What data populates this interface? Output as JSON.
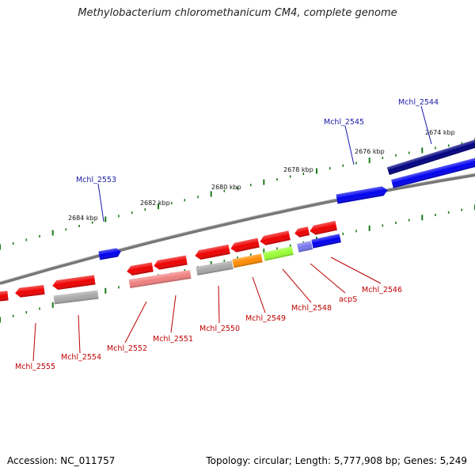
{
  "header": {
    "title": "Methylobacterium chloromethanicum CM4, complete genome"
  },
  "footer": {
    "accession": "Accession: NC_011757",
    "summary": "Topology: circular; Length: 5,777,908 bp; Genes: 5,249"
  },
  "colors": {
    "backbone": "#808080",
    "tick": "#1a7a1a",
    "forward_dark": "#000080",
    "forward": "#0000ee",
    "reverse": "#ee0000",
    "rrna_gray": "#a8a8a8",
    "pink": "#f08080",
    "orange": "#ff8c00",
    "lime": "#99ff33",
    "violet": "#7777ee",
    "label_top": "#1a1aaa",
    "label_bottom": "#c00000"
  },
  "tick_labels": [
    {
      "label": "2674 kbp"
    },
    {
      "label": "2676 kbp"
    },
    {
      "label": "2678 kbp"
    },
    {
      "label": "2680 kbp"
    },
    {
      "label": "2682 kbp"
    },
    {
      "label": "2684 kbp"
    }
  ],
  "top_gene_labels": [
    {
      "label": "Mchl_2544"
    },
    {
      "label": "Mchl_2545"
    },
    {
      "label": "Mchl_2553"
    }
  ],
  "bottom_gene_labels": [
    {
      "label": "Mchl_2546"
    },
    {
      "label": "acpS"
    },
    {
      "label": "Mchl_2548"
    },
    {
      "label": "Mchl_2549"
    },
    {
      "label": "Mchl_2550"
    },
    {
      "label": "Mchl_2551"
    },
    {
      "label": "Mchl_2552"
    },
    {
      "label": "Mchl_2554"
    },
    {
      "label": "Mchl_2555"
    }
  ]
}
